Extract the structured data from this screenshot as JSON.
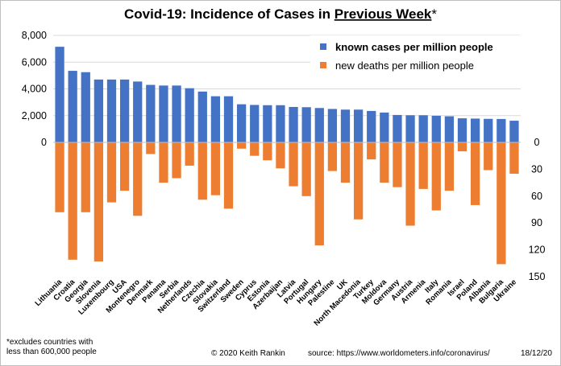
{
  "chart_data": {
    "type": "bar",
    "title": {
      "main": "Covid-19: Incidence of Cases in ",
      "emphasis": "Previous Week",
      "star": "*"
    },
    "categories": [
      "Lithuania",
      "Croatia",
      "Georgia",
      "Slovenia",
      "Luxembourg",
      "USA",
      "Montenegro",
      "Denmark",
      "Panama",
      "Serbia",
      "Netherlands",
      "Czechia",
      "Slovakia",
      "Switzerland",
      "Sweden",
      "Cyprus",
      "Estonia",
      "Azerbaijan",
      "Latvia",
      "Portugal",
      "Hungary",
      "Palestine",
      "UK",
      "North Macedonia",
      "Turkey",
      "Moldova",
      "Germany",
      "Austria",
      "Armenia",
      "Italy",
      "Romania",
      "Israel",
      "Poland",
      "Albania",
      "Bulgaria",
      "Ukraine"
    ],
    "series": [
      {
        "name": "known cases per million people",
        "color": "#4472C4",
        "axis": "left",
        "values": [
          7150,
          5350,
          5250,
          4700,
          4700,
          4700,
          4550,
          4300,
          4250,
          4250,
          4050,
          3800,
          3450,
          3450,
          2850,
          2800,
          2780,
          2780,
          2650,
          2630,
          2570,
          2500,
          2450,
          2450,
          2350,
          2230,
          2050,
          2030,
          2030,
          1990,
          1950,
          1800,
          1780,
          1760,
          1750,
          1620
        ]
      },
      {
        "name": "new deaths per million people",
        "color": "#ED7D31",
        "axis": "right",
        "values": [
          78,
          131,
          78,
          133,
          67,
          54,
          82,
          13,
          45,
          40,
          26,
          64,
          59,
          74,
          7,
          15,
          20,
          29,
          49,
          60,
          115,
          32,
          45,
          86,
          19,
          45,
          50,
          93,
          52,
          76,
          54,
          10,
          70,
          31,
          136,
          35
        ]
      }
    ],
    "left_axis": {
      "ticks": [
        "8,000",
        "6,000",
        "4,000",
        "2,000",
        "0"
      ],
      "ylim": [
        0,
        8000
      ]
    },
    "right_axis": {
      "ticks": [
        "0",
        "30",
        "60",
        "90",
        "120",
        "150"
      ],
      "ylim": [
        0,
        150
      ]
    },
    "legend_position": "top-right"
  },
  "footer": {
    "note_line1": "*excludes countries with",
    "note_line2": "less than 600,000 people",
    "credit": "© 2020  Keith Rankin",
    "source": "source:  https://www.worldometers.info/coronavirus/",
    "date": "18/12/20"
  }
}
